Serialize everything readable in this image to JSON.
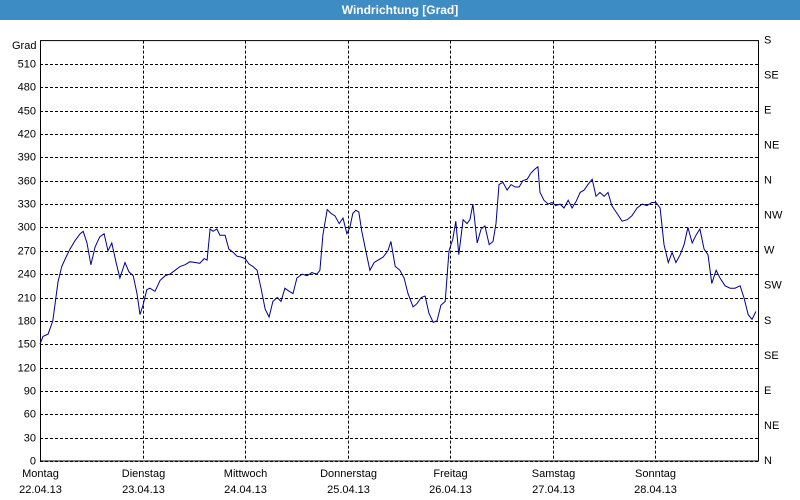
{
  "chart_data": {
    "type": "line",
    "title": "Windrichtung [Grad]",
    "y_label": "Grad",
    "xlim": [
      0,
      168
    ],
    "xticks": [
      {
        "value": 0,
        "label": "Montag",
        "sublabel": "22.04.13"
      },
      {
        "value": 24,
        "label": "Dienstag",
        "sublabel": "23.04.13"
      },
      {
        "value": 48,
        "label": "Mittwoch",
        "sublabel": "24.04.13"
      },
      {
        "value": 72,
        "label": "Donnerstag",
        "sublabel": "25.04.13"
      },
      {
        "value": 96,
        "label": "Freitag",
        "sublabel": "26.04.13"
      },
      {
        "value": 120,
        "label": "Samstag",
        "sublabel": "27.04.13"
      },
      {
        "value": 144,
        "label": "Sonntag",
        "sublabel": "28.04.13"
      }
    ],
    "ylim": [
      0,
      540
    ],
    "yticks": [
      0,
      30,
      60,
      90,
      120,
      150,
      180,
      210,
      240,
      270,
      300,
      330,
      360,
      390,
      420,
      450,
      480,
      510
    ],
    "y2lim": [
      0,
      540
    ],
    "y2ticks": [
      {
        "value": 540,
        "label": "S"
      },
      {
        "value": 495,
        "label": "SE"
      },
      {
        "value": 450,
        "label": "E"
      },
      {
        "value": 405,
        "label": "NE"
      },
      {
        "value": 360,
        "label": "N"
      },
      {
        "value": 315,
        "label": "NW"
      },
      {
        "value": 270,
        "label": "W"
      },
      {
        "value": 225,
        "label": "SW"
      },
      {
        "value": 180,
        "label": "S"
      },
      {
        "value": 135,
        "label": "SE"
      },
      {
        "value": 90,
        "label": "E"
      },
      {
        "value": 45,
        "label": "NE"
      },
      {
        "value": 0,
        "label": "N"
      }
    ],
    "grid": true,
    "series": [
      {
        "color": "#00008b",
        "x": [
          0,
          0.7,
          1.9,
          3.0,
          4.2,
          5.1,
          6.1,
          7.0,
          8.2,
          9.4,
          10.1,
          11.0,
          11.9,
          12.9,
          14.0,
          15.0,
          15.9,
          16.8,
          17.8,
          18.7,
          19.9,
          20.8,
          21.8,
          22.7,
          23.4,
          24.1,
          25.0,
          25.7,
          26.9,
          28.1,
          29.3,
          30.4,
          31.6,
          32.8,
          33.9,
          35.1,
          36.3,
          37.4,
          38.4,
          39.1,
          39.8,
          40.5,
          41.4,
          42.1,
          43.3,
          44.2,
          45.2,
          46.1,
          47.0,
          48.0,
          48.9,
          49.8,
          50.8,
          51.7,
          52.7,
          53.6,
          54.5,
          55.5,
          56.4,
          57.3,
          58.3,
          59.2,
          60.1,
          61.3,
          62.5,
          63.6,
          64.8,
          65.5,
          66.2,
          67.2,
          68.1,
          69.0,
          70.0,
          70.9,
          71.8,
          72.5,
          73.2,
          73.9,
          74.6,
          75.3,
          76.3,
          77.2,
          78.2,
          79.1,
          80.3,
          81.4,
          82.1,
          83.1,
          84.2,
          85.2,
          86.1,
          87.3,
          88.2,
          89.2,
          90.1,
          91.0,
          92.0,
          92.9,
          93.8,
          94.8,
          95.7,
          96.6,
          97.3,
          98.0,
          99.0,
          99.9,
          100.6,
          101.3,
          102.3,
          103.2,
          104.1,
          105.1,
          106.0,
          106.7,
          107.4,
          108.3,
          109.3,
          110.2,
          111.2,
          112.1,
          113.0,
          114.0,
          114.9,
          115.8,
          116.5,
          117.0,
          117.9,
          118.9,
          119.8,
          120.7,
          121.7,
          122.6,
          123.6,
          124.5,
          125.4,
          126.4,
          127.3,
          128.2,
          129.2,
          130.1,
          131.0,
          132.0,
          132.9,
          133.8,
          135.0,
          136.2,
          137.4,
          138.5,
          139.7,
          140.9,
          142.0,
          143.2,
          144.1,
          145.1,
          146.0,
          147.0,
          147.9,
          148.8,
          149.8,
          150.7,
          151.6,
          152.6,
          153.5,
          154.4,
          155.4,
          156.3,
          157.2,
          158.2,
          159.1,
          160.3,
          161.5,
          162.6,
          163.8,
          164.7,
          165.7,
          166.6,
          167.5
        ],
        "values": [
          150,
          160,
          163,
          180,
          230,
          250,
          262,
          272,
          283,
          292,
          295,
          280,
          252,
          275,
          288,
          292,
          270,
          280,
          255,
          235,
          255,
          243,
          238,
          215,
          188,
          200,
          220,
          222,
          218,
          232,
          238,
          240,
          245,
          250,
          252,
          256,
          255,
          254,
          260,
          258,
          298,
          295,
          298,
          290,
          290,
          272,
          268,
          263,
          262,
          260,
          253,
          250,
          245,
          222,
          195,
          185,
          205,
          210,
          205,
          222,
          218,
          215,
          235,
          240,
          238,
          242,
          240,
          245,
          290,
          323,
          318,
          315,
          305,
          312,
          292,
          300,
          318,
          322,
          320,
          295,
          268,
          245,
          255,
          258,
          262,
          270,
          282,
          250,
          245,
          235,
          215,
          198,
          202,
          210,
          212,
          190,
          178,
          180,
          200,
          205,
          270,
          285,
          308,
          265,
          310,
          305,
          310,
          330,
          280,
          298,
          302,
          278,
          282,
          305,
          355,
          358,
          348,
          355,
          352,
          352,
          360,
          362,
          370,
          375,
          378,
          345,
          335,
          330,
          332,
          328,
          330,
          325,
          335,
          325,
          333,
          345,
          348,
          355,
          362,
          340,
          345,
          340,
          345,
          328,
          318,
          308,
          310,
          315,
          325,
          330,
          328,
          332,
          332,
          325,
          278,
          255,
          268,
          255,
          265,
          278,
          300,
          280,
          290,
          298,
          272,
          265,
          228,
          245,
          235,
          225,
          222,
          222,
          225,
          210,
          188,
          182,
          192
        ]
      }
    ]
  }
}
